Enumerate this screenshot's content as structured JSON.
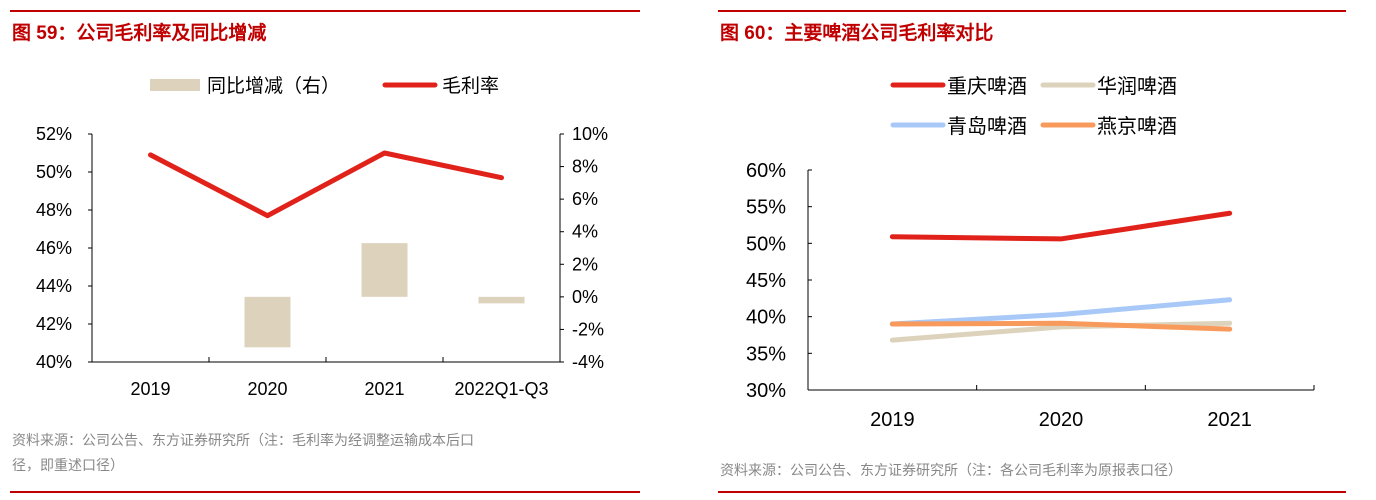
{
  "chart_data": [
    {
      "type": "bar+line",
      "title": "图 59：公司毛利率及同比增减",
      "categories": [
        "2019",
        "2020",
        "2021",
        "2022Q1-Q3"
      ],
      "series": [
        {
          "name": "同比增减（右）",
          "type": "bar",
          "axis": "right",
          "values": [
            null,
            -3.1,
            3.3,
            -0.4
          ],
          "color": "#ddd3bd"
        },
        {
          "name": "毛利率",
          "type": "line",
          "axis": "left",
          "values": [
            50.9,
            47.7,
            51.0,
            49.7
          ],
          "color": "#e0221b"
        }
      ],
      "y_left": {
        "ylim": [
          40,
          52
        ],
        "ticks": [
          "40%",
          "42%",
          "44%",
          "46%",
          "48%",
          "50%",
          "52%"
        ]
      },
      "y_right": {
        "ylim": [
          -4,
          10
        ],
        "ticks": [
          "-4%",
          "-2%",
          "0%",
          "2%",
          "4%",
          "6%",
          "8%",
          "10%"
        ]
      },
      "legend": "top",
      "grid": false,
      "source": [
        "资料来源：公司公告、东方证券研究所（注：毛利率为经调整运输成本后口",
        "径，即重述口径）"
      ]
    },
    {
      "type": "line",
      "title": "图 60：主要啤酒公司毛利率对比",
      "categories": [
        "2019",
        "2020",
        "2021"
      ],
      "series": [
        {
          "name": "重庆啤酒",
          "values": [
            50.9,
            50.6,
            54.1
          ],
          "color": "#e0221b"
        },
        {
          "name": "华润啤酒",
          "values": [
            36.8,
            38.6,
            39.1
          ],
          "color": "#ddd3bd"
        },
        {
          "name": "青岛啤酒",
          "values": [
            39.0,
            40.3,
            42.3
          ],
          "color": "#a8c8f8"
        },
        {
          "name": "燕京啤酒",
          "values": [
            39.0,
            39.1,
            38.3
          ],
          "color": "#f79a5b"
        }
      ],
      "ylim": [
        30,
        60
      ],
      "ticks": [
        "30%",
        "35%",
        "40%",
        "45%",
        "50%",
        "55%",
        "60%"
      ],
      "legend": "top",
      "grid": false,
      "source": [
        "资料来源：公司公告、东方证券研究所（注：各公司毛利率为原报表口径）"
      ]
    }
  ]
}
